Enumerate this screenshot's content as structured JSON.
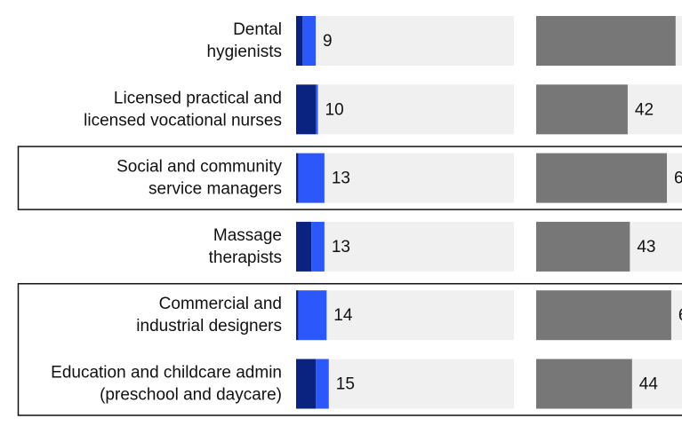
{
  "chart_data": [
    {
      "type": "stacked-bar",
      "categories": [
        [
          "Dental",
          "hygienists"
        ],
        [
          "Licensed practical and",
          "licensed vocational nurses"
        ],
        [
          "Social and community",
          "service managers"
        ],
        [
          "Massage",
          "therapists"
        ],
        [
          "Commercial and",
          "industrial designers"
        ],
        [
          "Education and childcare admin",
          "(preschool and daycare)"
        ]
      ],
      "series": [
        {
          "color": "#0a2280",
          "values": [
            3,
            9,
            1,
            7,
            1,
            9
          ]
        },
        {
          "color": "#2b57fb",
          "values": [
            6,
            1,
            12,
            6,
            13,
            6
          ]
        }
      ],
      "total_labels": [
        9,
        10,
        13,
        13,
        14,
        15
      ],
      "xlim": [
        0,
        100
      ],
      "highlighted": [
        2,
        4,
        5
      ]
    },
    {
      "type": "bar",
      "color": "#777777",
      "values": [
        64,
        42,
        60,
        43,
        62,
        44
      ],
      "xlim": [
        0,
        100
      ]
    }
  ]
}
